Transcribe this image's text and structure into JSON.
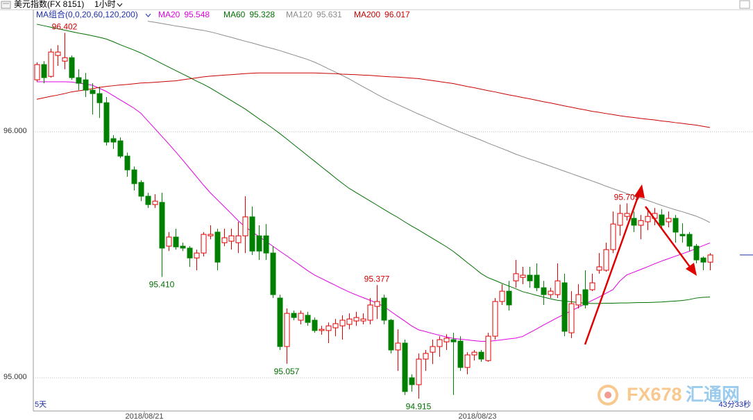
{
  "chart_data": {
    "type": "candlestick",
    "title": "美元指数(FX 8151)",
    "period": "1小时",
    "indicator": "MA组合(0,0,20,60,120,200)",
    "footer_left": "5天",
    "countdown": "43分33秒",
    "watermark_brand": "FX678",
    "watermark_name": "汇通网",
    "up_color": "#e00000",
    "down_color": "#008000",
    "grid": true,
    "ylim": [
      94.865,
      96.496
    ],
    "yticks": [
      {
        "value": 96,
        "label": "96.000"
      },
      {
        "value": 95,
        "label": "95.000"
      }
    ],
    "categories": [
      null,
      null,
      null,
      null,
      null,
      null,
      null,
      null,
      null,
      null,
      null,
      null,
      null,
      null,
      null,
      "2018/08/21",
      null,
      null,
      null,
      null,
      null,
      null,
      null,
      null,
      null,
      null,
      null,
      null,
      null,
      null,
      null,
      null,
      null,
      null,
      null,
      null,
      null,
      null,
      null,
      null,
      null,
      null,
      null,
      null,
      null,
      null,
      null,
      null,
      null,
      null,
      null,
      null,
      null,
      null,
      null,
      null,
      null,
      null,
      null,
      null,
      null,
      null,
      null,
      "2018/08/23",
      null,
      null,
      null,
      null,
      null,
      null,
      null,
      null,
      null,
      null,
      null,
      null,
      null,
      null,
      null,
      null,
      null,
      null,
      null,
      null,
      null,
      null,
      null,
      null,
      null,
      null,
      null,
      null,
      null,
      null,
      null,
      null,
      null,
      null
    ],
    "open": [
      96.211,
      96.273,
      96.225,
      96.31,
      96.287,
      96.301,
      96.22,
      96.211,
      96.169,
      96.155,
      96.118,
      95.972,
      95.963,
      95.901,
      95.845,
      95.794,
      95.738,
      95.704,
      95.713,
      95.535,
      95.572,
      95.535,
      95.527,
      95.487,
      95.507,
      95.577,
      95.592,
      95.549,
      95.555,
      95.549,
      95.577,
      95.654,
      95.577,
      95.577,
      95.507,
      95.324,
      95.127,
      95.262,
      95.234,
      95.254,
      95.234,
      95.192,
      95.192,
      95.203,
      95.211,
      95.217,
      95.231,
      95.231,
      95.234,
      95.29,
      95.324,
      95.234,
      95.113,
      95.141,
      95.0,
      94.972,
      95.076,
      95.104,
      95.127,
      95.146,
      95.155,
      95.149,
      95.042,
      95.093,
      95.104,
      95.07,
      95.169,
      95.31,
      95.352,
      95.394,
      95.408,
      95.417,
      95.417,
      95.366,
      95.338,
      95.338,
      95.386,
      95.183,
      95.296,
      95.358,
      95.358,
      95.437,
      95.437,
      95.521,
      95.62,
      95.656,
      95.648,
      95.62,
      95.634,
      95.648,
      95.662,
      95.634,
      95.648,
      95.583,
      95.583,
      95.535,
      95.487,
      95.47
    ],
    "high": [
      96.282,
      96.287,
      96.338,
      96.352,
      96.402,
      96.31,
      96.254,
      96.239,
      96.197,
      96.183,
      96.141,
      95.986,
      95.977,
      95.915,
      95.859,
      95.803,
      95.752,
      95.746,
      95.752,
      95.592,
      95.606,
      95.549,
      95.535,
      95.521,
      95.592,
      95.62,
      95.606,
      95.606,
      95.606,
      95.634,
      95.738,
      95.696,
      95.62,
      95.625,
      95.535,
      95.338,
      95.282,
      95.273,
      95.273,
      95.268,
      95.245,
      95.211,
      95.225,
      95.239,
      95.254,
      95.262,
      95.268,
      95.262,
      95.324,
      95.377,
      95.338,
      95.239,
      95.197,
      95.155,
      95.014,
      95.099,
      95.113,
      95.155,
      95.169,
      95.177,
      95.183,
      95.169,
      95.104,
      95.113,
      95.113,
      95.183,
      95.324,
      95.38,
      95.394,
      95.479,
      95.451,
      95.451,
      95.465,
      95.394,
      95.366,
      95.465,
      95.423,
      95.352,
      95.38,
      95.437,
      95.423,
      95.507,
      95.549,
      95.676,
      95.704,
      95.709,
      95.676,
      95.662,
      95.69,
      95.69,
      95.685,
      95.676,
      95.662,
      95.628,
      95.592,
      95.544,
      95.493,
      95.507
    ],
    "low": [
      96.203,
      96.197,
      96.22,
      96.268,
      96.254,
      96.211,
      96.169,
      96.141,
      96.07,
      96.056,
      95.944,
      95.93,
      95.893,
      95.817,
      95.761,
      95.718,
      95.69,
      95.69,
      95.41,
      95.515,
      95.521,
      95.515,
      95.451,
      95.437,
      95.493,
      95.563,
      95.437,
      95.535,
      95.521,
      95.507,
      95.507,
      95.499,
      95.479,
      95.479,
      95.324,
      95.113,
      95.057,
      95.234,
      95.217,
      95.211,
      95.183,
      95.175,
      95.141,
      95.169,
      95.155,
      95.197,
      95.211,
      95.217,
      95.217,
      95.239,
      95.217,
      95.099,
      95.028,
      94.93,
      94.944,
      94.915,
      95.028,
      95.056,
      95.085,
      95.113,
      94.93,
      95.028,
      95.014,
      95.07,
      95.065,
      95.065,
      95.155,
      95.296,
      95.273,
      95.366,
      95.38,
      95.366,
      95.352,
      95.296,
      95.324,
      95.324,
      95.169,
      95.161,
      95.282,
      95.282,
      95.352,
      95.423,
      95.431,
      95.507,
      95.577,
      95.639,
      95.592,
      95.563,
      95.6,
      95.62,
      95.606,
      95.611,
      95.549,
      95.549,
      95.515,
      95.465,
      95.437,
      95.437
    ],
    "close": [
      96.273,
      96.22,
      96.324,
      96.324,
      96.301,
      96.22,
      96.197,
      96.169,
      96.155,
      96.118,
      95.958,
      95.958,
      95.901,
      95.845,
      95.789,
      95.738,
      95.704,
      95.718,
      95.527,
      95.572,
      95.532,
      95.527,
      95.487,
      95.507,
      95.583,
      95.583,
      95.47,
      95.569,
      95.577,
      95.577,
      95.654,
      95.515,
      95.515,
      95.507,
      95.338,
      95.127,
      95.262,
      95.245,
      95.262,
      95.225,
      95.192,
      95.197,
      95.211,
      95.22,
      95.234,
      95.239,
      95.245,
      95.239,
      95.296,
      95.31,
      95.234,
      95.113,
      95.141,
      94.944,
      94.972,
      95.076,
      95.099,
      95.127,
      95.155,
      95.161,
      95.146,
      95.042,
      95.093,
      95.104,
      95.076,
      95.169,
      95.31,
      95.352,
      95.296,
      95.423,
      95.417,
      95.394,
      95.366,
      95.338,
      95.352,
      95.394,
      95.189,
      95.301,
      95.338,
      95.296,
      95.386,
      95.451,
      95.521,
      95.625,
      95.668,
      95.668,
      95.62,
      95.639,
      95.656,
      95.668,
      95.62,
      95.648,
      95.592,
      95.577,
      95.535,
      95.479,
      95.47,
      95.499
    ],
    "series": [
      {
        "name": "MA20",
        "color": "#e000e0",
        "values": [
          96.203,
          96.203,
          96.203,
          96.203,
          96.203,
          96.202,
          96.198,
          96.194,
          96.189,
          96.177,
          96.164,
          96.147,
          96.13,
          96.113,
          96.096,
          96.075,
          96.044,
          96.013,
          95.982,
          95.951,
          95.919,
          95.886,
          95.852,
          95.818,
          95.784,
          95.752,
          95.724,
          95.696,
          95.668,
          95.639,
          95.614,
          95.594,
          95.574,
          95.555,
          95.535,
          95.515,
          95.496,
          95.476,
          95.456,
          95.436,
          95.418,
          95.404,
          95.39,
          95.376,
          95.362,
          95.349,
          95.337,
          95.326,
          95.315,
          95.304,
          95.29,
          95.27,
          95.25,
          95.231,
          95.211,
          95.195,
          95.188,
          95.18,
          95.173,
          95.166,
          95.16,
          95.157,
          95.154,
          95.151,
          95.148,
          95.148,
          95.151,
          95.154,
          95.158,
          95.161,
          95.168,
          95.183,
          95.198,
          95.214,
          95.229,
          95.244,
          95.258,
          95.272,
          95.286,
          95.3,
          95.314,
          95.328,
          95.343,
          95.358,
          95.393,
          95.418,
          95.429,
          95.44,
          95.451,
          95.463,
          95.474,
          95.484,
          95.494,
          95.504,
          95.514,
          95.525,
          95.537,
          95.548
        ]
      },
      {
        "name": "MA60",
        "color": "#007000",
        "values": [
          96.437,
          96.431,
          96.425,
          96.419,
          96.413,
          96.407,
          96.401,
          96.396,
          96.39,
          96.384,
          96.377,
          96.366,
          96.354,
          96.343,
          96.332,
          96.32,
          96.306,
          96.292,
          96.277,
          96.263,
          96.249,
          96.235,
          96.221,
          96.206,
          96.193,
          96.178,
          96.161,
          96.144,
          96.127,
          96.11,
          96.093,
          96.073,
          96.053,
          96.034,
          96.014,
          95.993,
          95.971,
          95.948,
          95.926,
          95.903,
          95.881,
          95.858,
          95.836,
          95.813,
          95.791,
          95.77,
          95.753,
          95.736,
          95.719,
          95.702,
          95.685,
          95.668,
          95.652,
          95.634,
          95.617,
          95.601,
          95.584,
          95.567,
          95.55,
          95.533,
          95.514,
          95.492,
          95.469,
          95.447,
          95.424,
          95.407,
          95.396,
          95.384,
          95.373,
          95.362,
          95.35,
          95.343,
          95.335,
          95.328,
          95.321,
          95.315,
          95.312,
          95.309,
          95.306,
          95.303,
          95.302,
          95.302,
          95.303,
          95.303,
          95.304,
          95.304,
          95.305,
          95.306,
          95.306,
          95.307,
          95.308,
          95.31,
          95.312,
          95.314,
          95.318,
          95.324,
          95.327,
          95.328
        ]
      },
      {
        "name": "MA120",
        "color": "#8c8c8c",
        "values": [
          null,
          null,
          null,
          null,
          null,
          null,
          null,
          null,
          null,
          null,
          null,
          null,
          null,
          null,
          null,
          null,
          96.449,
          96.445,
          96.44,
          96.435,
          96.43,
          96.426,
          96.421,
          96.416,
          96.412,
          96.406,
          96.399,
          96.391,
          96.384,
          96.376,
          96.368,
          96.361,
          96.353,
          96.345,
          96.338,
          96.33,
          96.321,
          96.312,
          96.303,
          96.294,
          96.283,
          96.27,
          96.256,
          96.243,
          96.229,
          96.215,
          96.199,
          96.183,
          96.168,
          96.152,
          96.137,
          96.124,
          96.111,
          96.098,
          96.085,
          96.072,
          96.06,
          96.048,
          96.035,
          96.023,
          96.011,
          95.999,
          95.988,
          95.977,
          95.966,
          95.954,
          95.943,
          95.932,
          95.921,
          95.909,
          95.899,
          95.889,
          95.88,
          95.87,
          95.86,
          95.85,
          95.84,
          95.83,
          95.82,
          95.81,
          95.8,
          95.79,
          95.779,
          95.769,
          95.759,
          95.749,
          95.74,
          95.73,
          95.721,
          95.711,
          95.701,
          95.692,
          95.683,
          95.675,
          95.666,
          95.657,
          95.645,
          95.631
        ]
      },
      {
        "name": "MA200",
        "color": "#c80000",
        "values": [
          96.132,
          96.138,
          96.144,
          96.149,
          96.155,
          96.162,
          96.166,
          96.17,
          96.175,
          96.18,
          96.184,
          96.187,
          96.19,
          96.192,
          96.195,
          96.198,
          96.199,
          96.201,
          96.203,
          96.205,
          96.207,
          96.211,
          96.215,
          96.219,
          96.223,
          96.226,
          96.228,
          96.23,
          96.232,
          96.234,
          96.236,
          96.238,
          96.239,
          96.239,
          96.239,
          96.239,
          96.239,
          96.239,
          96.239,
          96.239,
          96.239,
          96.238,
          96.237,
          96.236,
          96.234,
          96.233,
          96.232,
          96.23,
          96.229,
          96.227,
          96.225,
          96.223,
          96.222,
          96.22,
          96.218,
          96.216,
          96.212,
          96.208,
          96.204,
          96.2,
          96.196,
          96.19,
          96.184,
          96.179,
          96.173,
          96.167,
          96.162,
          96.156,
          96.15,
          96.145,
          96.139,
          96.134,
          96.128,
          96.122,
          96.117,
          96.111,
          96.105,
          96.1,
          96.094,
          96.089,
          96.083,
          96.079,
          96.074,
          96.07,
          96.065,
          96.061,
          96.058,
          96.054,
          96.051,
          96.048,
          96.044,
          96.041,
          96.037,
          96.034,
          96.03,
          96.027,
          96.022,
          96.017
        ]
      }
    ],
    "annotations": [
      {
        "value": 96.402,
        "label": "96.402"
      },
      {
        "value": 95.41,
        "label": "95.410"
      },
      {
        "value": 95.377,
        "label": "95.377"
      },
      {
        "value": 95.057,
        "label": "95.057"
      },
      {
        "value": 94.915,
        "label": "94.915"
      },
      {
        "value": 95.709,
        "label": "95.709"
      }
    ]
  }
}
